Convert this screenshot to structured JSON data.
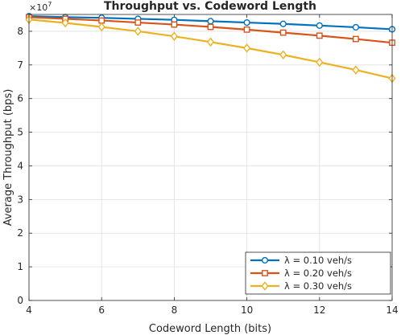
{
  "chart_data": {
    "type": "line",
    "title": "Throughput vs. Codeword Length",
    "xlabel": "Codeword Length (bits)",
    "ylabel": "Average Throughput (bps)",
    "exponent_label": "×10",
    "exponent_power": "7",
    "xlim": [
      4,
      14
    ],
    "ylim": [
      0,
      8.5
    ],
    "xticks": [
      4,
      6,
      8,
      10,
      12,
      14
    ],
    "yticks": [
      0,
      1,
      2,
      3,
      4,
      5,
      6,
      7,
      8
    ],
    "grid": true,
    "legend_position": "bottom-right",
    "x": [
      4,
      5,
      6,
      7,
      8,
      9,
      10,
      11,
      12,
      13,
      14
    ],
    "series": [
      {
        "name": "λ = 0.10 veh/s",
        "values": [
          8.45,
          8.42,
          8.4,
          8.37,
          8.34,
          8.3,
          8.26,
          8.22,
          8.17,
          8.12,
          8.06
        ],
        "color": "#0072BD",
        "marker": "circle"
      },
      {
        "name": "λ = 0.20 veh/s",
        "values": [
          8.42,
          8.37,
          8.32,
          8.26,
          8.2,
          8.13,
          8.05,
          7.96,
          7.87,
          7.77,
          7.66
        ],
        "color": "#D95319",
        "marker": "square"
      },
      {
        "name": "λ = 0.30 veh/s",
        "values": [
          8.35,
          8.25,
          8.13,
          8.0,
          7.85,
          7.68,
          7.5,
          7.3,
          7.08,
          6.85,
          6.6
        ],
        "color": "#EDB120",
        "marker": "diamond"
      }
    ]
  }
}
